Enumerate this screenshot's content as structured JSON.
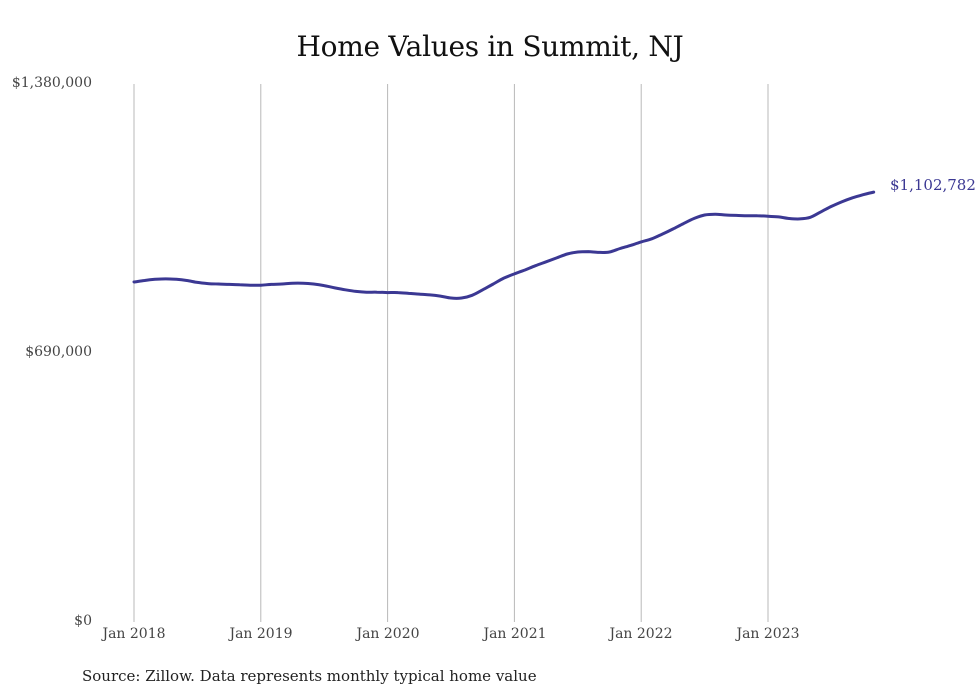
{
  "chart_data": {
    "type": "line",
    "title": "Home Values in Summit, NJ",
    "xlabel": "",
    "ylabel": "",
    "ylim": [
      0,
      1380000
    ],
    "yticks": [
      "$0",
      "$690,000",
      "$1,380,000"
    ],
    "xticks": [
      "Jan 2018",
      "Jan 2019",
      "Jan 2020",
      "Jan 2021",
      "Jan 2022",
      "Jan 2023"
    ],
    "grid": "vertical",
    "legend": "none",
    "series": [
      {
        "name": "Typical home value",
        "color": "#3b3893",
        "start": "2018-01",
        "frequency": "monthly",
        "values": [
          872000,
          876000,
          879000,
          880000,
          879000,
          876000,
          871000,
          868000,
          867000,
          866000,
          865000,
          864000,
          864000,
          866000,
          867000,
          869000,
          869000,
          867000,
          863000,
          857000,
          852000,
          848000,
          846000,
          846000,
          845000,
          845000,
          843000,
          841000,
          839000,
          836000,
          831000,
          831000,
          838000,
          852000,
          867000,
          882000,
          893000,
          903000,
          914000,
          924000,
          934000,
          944000,
          949000,
          950000,
          948000,
          949000,
          958000,
          966000,
          975000,
          983000,
          995000,
          1008000,
          1022000,
          1035000,
          1044000,
          1046000,
          1044000,
          1043000,
          1042000,
          1042000,
          1041000,
          1039000,
          1035000,
          1034000,
          1038000,
          1052000,
          1066000,
          1078000,
          1088000,
          1096000,
          1102782
        ]
      }
    ],
    "end_label": "$1,102,782",
    "annotations": [
      "$1,102,782"
    ]
  },
  "source_note": "Source: Zillow. Data represents monthly typical home value"
}
